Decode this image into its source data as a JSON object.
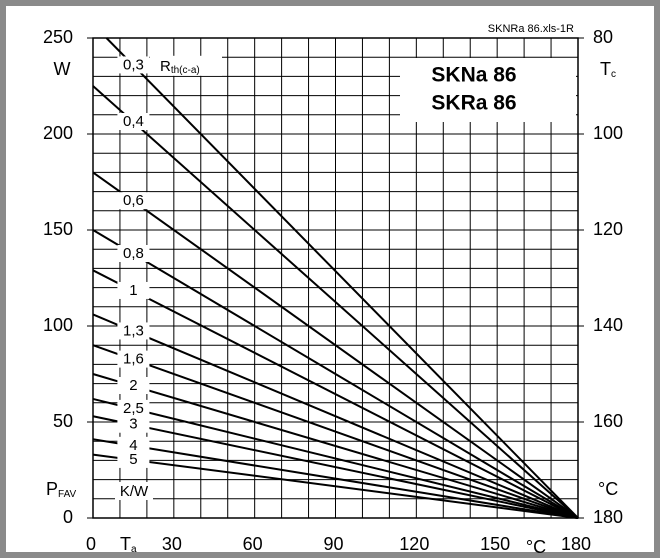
{
  "chart_data": {
    "type": "line",
    "title": "SKNRa 86.xls-1R",
    "annotations": [
      "SKNa 86",
      "SKRa 86"
    ],
    "y_quantity": "P",
    "y_quantity_sub": "FAV",
    "y_label": "W",
    "y2_quantity": "T",
    "y2_quantity_sub": "c",
    "y2_label": "°C",
    "x_quantity": "T",
    "x_quantity_sub": "a",
    "x_label": "°C",
    "legend_title": "R",
    "legend_title_sub": "th(c-a)",
    "legend_unit": "K/W",
    "xlim": [
      0,
      180
    ],
    "xticks": [
      0,
      30,
      60,
      90,
      120,
      150,
      180
    ],
    "ylim": [
      0,
      250
    ],
    "yticks": [
      0,
      50,
      100,
      150,
      200,
      250
    ],
    "y2lim": [
      180,
      80
    ],
    "y2ticks": [
      80,
      100,
      120,
      140,
      160,
      180
    ],
    "grid": true,
    "series": [
      {
        "name": "0,3",
        "color": "#000000",
        "x": [
          5,
          180
        ],
        "values": [
          250,
          0
        ]
      },
      {
        "name": "0,4",
        "color": "#000000",
        "x": [
          0,
          180
        ],
        "values": [
          225,
          0
        ]
      },
      {
        "name": "0,6",
        "color": "#000000",
        "x": [
          0,
          180
        ],
        "values": [
          180,
          0
        ]
      },
      {
        "name": "0,8",
        "color": "#000000",
        "x": [
          0,
          180
        ],
        "values": [
          150,
          0
        ]
      },
      {
        "name": "1",
        "color": "#000000",
        "x": [
          0,
          180
        ],
        "values": [
          129,
          0
        ]
      },
      {
        "name": "1,3",
        "color": "#000000",
        "x": [
          0,
          180
        ],
        "values": [
          106,
          0
        ]
      },
      {
        "name": "1,6",
        "color": "#000000",
        "x": [
          0,
          180
        ],
        "values": [
          90,
          0
        ]
      },
      {
        "name": "2",
        "color": "#000000",
        "x": [
          0,
          180
        ],
        "values": [
          75,
          0
        ]
      },
      {
        "name": "2,5",
        "color": "#000000",
        "x": [
          0,
          180
        ],
        "values": [
          62,
          0
        ]
      },
      {
        "name": "3",
        "color": "#000000",
        "x": [
          0,
          180
        ],
        "values": [
          53,
          0
        ]
      },
      {
        "name": "4",
        "color": "#000000",
        "x": [
          0,
          180
        ],
        "values": [
          41,
          0
        ]
      },
      {
        "name": "5",
        "color": "#000000",
        "x": [
          0,
          180
        ],
        "values": [
          33,
          0
        ]
      }
    ]
  }
}
